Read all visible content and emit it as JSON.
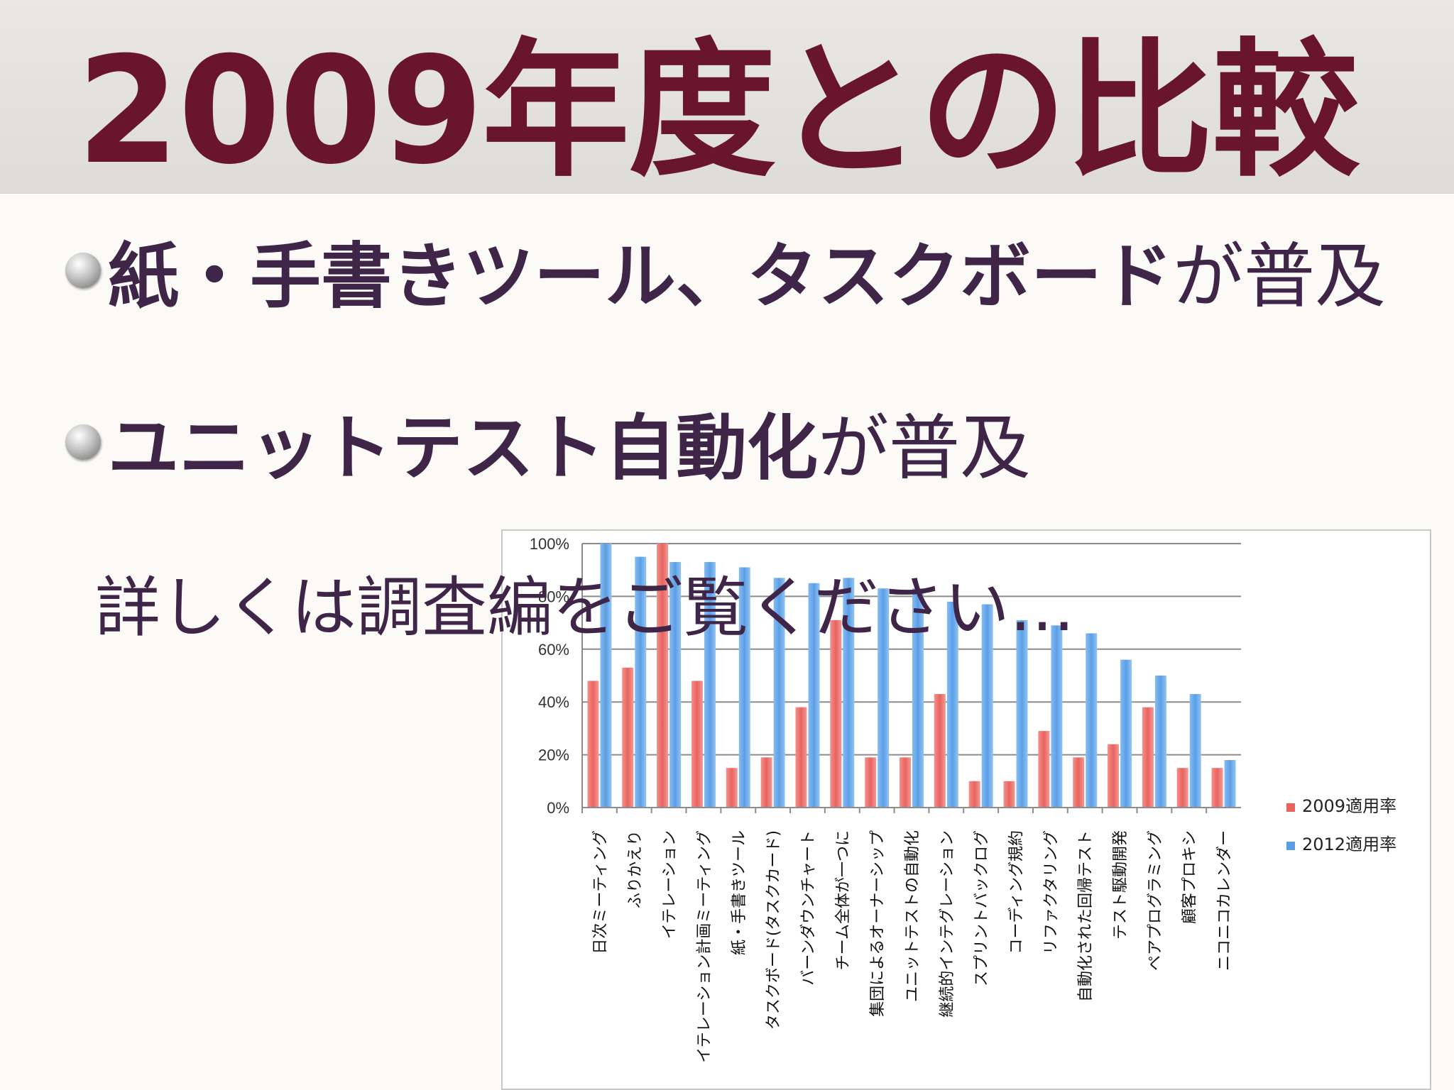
{
  "slide": {
    "title": "2009年度との比較",
    "bullets": [
      {
        "bold": "紙・手書きツール、タスクボード",
        "plain": "が普及"
      },
      {
        "bold": "ユニットテスト自動化",
        "plain": "が普及"
      }
    ],
    "note": "詳しくは調査編をご覧ください…"
  },
  "chart_data": {
    "type": "bar",
    "title": "",
    "xlabel": "",
    "ylabel": "",
    "ylim": [
      0,
      100
    ],
    "yticks": [
      "0%",
      "20%",
      "40%",
      "60%",
      "80%",
      "100%"
    ],
    "categories": [
      "日次ミーティング",
      "ふりかえり",
      "イテレーション",
      "イテレーション計画ミーティング",
      "紙・手書きツール",
      "タスクボード(タスクカード)",
      "バーンダウンチャート",
      "チーム全体が一つに",
      "集団によるオーナーシップ",
      "ユニットテストの自動化",
      "継続的インテグレーション",
      "スプリントバックログ",
      "コーディング規約",
      "リファクタリング",
      "自動化された回帰テスト",
      "テスト駆動開発",
      "ペアプログラミング",
      "顧客プロキシ",
      "ニコニコカレンダー"
    ],
    "series": [
      {
        "name": "2009適用率",
        "color": "#e8635f",
        "values": [
          48,
          53,
          100,
          48,
          15,
          19,
          38,
          71,
          19,
          19,
          43,
          10,
          10,
          29,
          19,
          24,
          38,
          15,
          15
        ]
      },
      {
        "name": "2012適用率",
        "color": "#5b9ee6",
        "values": [
          100,
          95,
          93,
          93,
          91,
          87,
          85,
          87,
          83,
          83,
          78,
          77,
          71,
          69,
          66,
          56,
          50,
          43,
          18
        ]
      }
    ],
    "grid": true,
    "legend": "right"
  }
}
